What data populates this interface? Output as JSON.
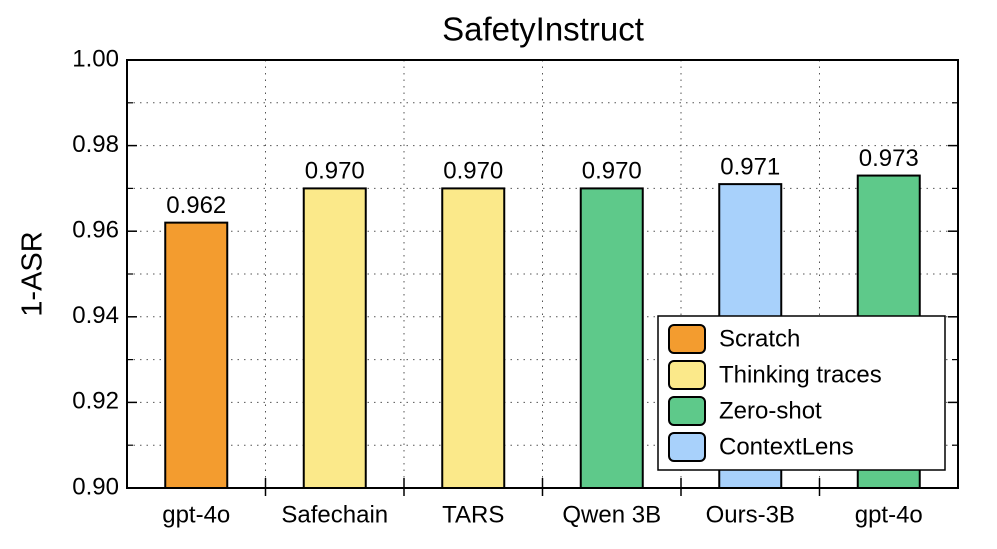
{
  "chart_data": {
    "type": "bar",
    "title": "SafetyInstruct",
    "y_label": "1-ASR",
    "categories": [
      "gpt-4o",
      "Safechain",
      "TARS",
      "Qwen 3B",
      "Ours-3B",
      "gpt-4o"
    ],
    "series": [
      {
        "name": "Scratch",
        "color": "#f39c2f",
        "values": [
          0.962,
          null,
          null,
          null,
          null,
          null
        ],
        "value_labels": [
          "0.962",
          null,
          null,
          null,
          null,
          null
        ]
      },
      {
        "name": "Thinking traces",
        "color": "#fbe98a",
        "values": [
          null,
          0.97,
          0.97,
          null,
          null,
          null
        ],
        "value_labels": [
          null,
          "0.970",
          "0.970",
          null,
          null,
          null
        ]
      },
      {
        "name": "Zero-shot",
        "color": "#5ec98a",
        "values": [
          null,
          null,
          null,
          0.97,
          null,
          0.973
        ],
        "value_labels": [
          null,
          null,
          null,
          "0.970",
          null,
          "0.973"
        ]
      },
      {
        "name": "ContextLens",
        "color": "#a8d1fb",
        "values": [
          null,
          null,
          null,
          null,
          0.971,
          null
        ],
        "value_labels": [
          null,
          null,
          null,
          null,
          "0.971",
          null
        ]
      }
    ],
    "ylim": [
      0.9,
      1.0
    ],
    "yticks": [
      {
        "value": 0.9,
        "label": "0.90"
      },
      0.92,
      0.94,
      0.96,
      0.98,
      {
        "value": 1.0,
        "label": "1.00"
      }
    ],
    "yminorticks": [
      0.91,
      0.93,
      0.95,
      0.97,
      0.99
    ],
    "grid": true,
    "legend": "lower right"
  }
}
